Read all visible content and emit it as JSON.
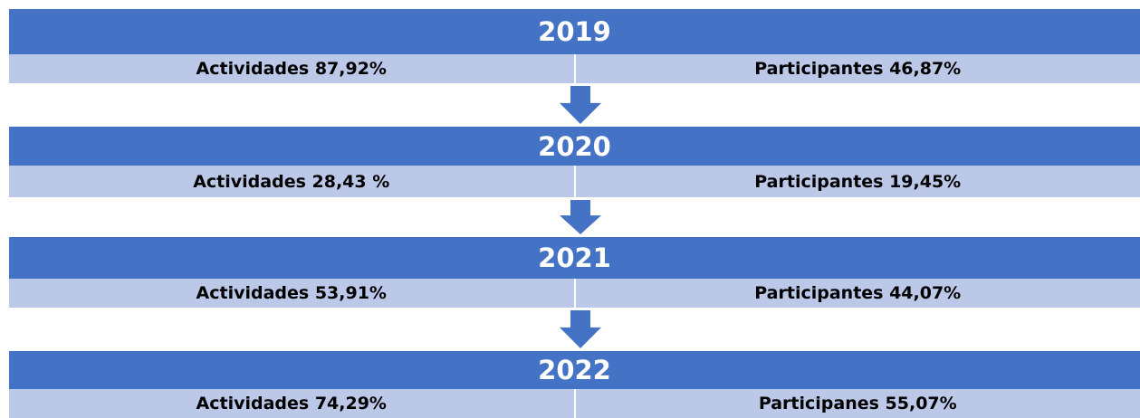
{
  "blocks": [
    {
      "year": "2019",
      "left": "Actividades 87,92%",
      "right": "Participantes 46,87%"
    },
    {
      "year": "2020",
      "left": "Actividades 28,43 %",
      "right": "Participantes 19,45%"
    },
    {
      "year": "2021",
      "left": "Actividades 53,91%",
      "right": "Participantes 44,07%"
    },
    {
      "year": "2022",
      "left": "Actividades 74,29%",
      "right": "Participanes 55,07%"
    }
  ]
}
